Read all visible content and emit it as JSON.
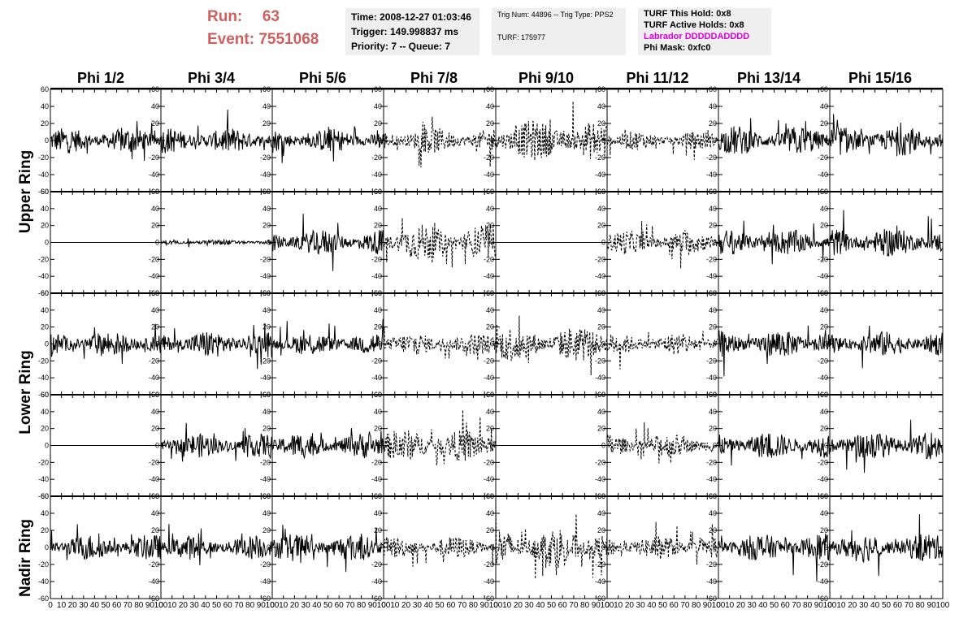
{
  "header": {
    "run_label": "Run:",
    "run_value": "63",
    "event_label": "Event:",
    "event_value": "7551068",
    "time": "Time: 2008-12-27 01:03:46",
    "trigger": "Trigger: 149.998837 ms",
    "priority": "Priority: 7 -- Queue: 7",
    "trig_num": "Trig Num: 44896 -- Trig Type: PPS2",
    "turf": "TURF: 175977",
    "turf_this_hold": "TURF This Hold: 0x8",
    "turf_active_holds": "TURF Active Holds: 0x8",
    "labrador": "Labrador DDDDDADDDD",
    "phi_mask": "Phi Mask: 0xfc0"
  },
  "colors": {
    "run_text": "#d0605e",
    "labrador_text": "#e100e1",
    "info_bg": "#efefef",
    "trace": "#000000"
  },
  "chart_data": {
    "type": "line",
    "description_of_panels": "grid of 5 rows x 8 columns of waveform traces",
    "columns": [
      "Phi 1/2",
      "Phi 3/4",
      "Phi 5/6",
      "Phi 7/8",
      "Phi 9/10",
      "Phi 11/12",
      "Phi 13/14",
      "Phi 15/16"
    ],
    "ring_labels": [
      "Upper Ring",
      "Lower Ring",
      "Nadir Ring"
    ],
    "ylim": [
      -60,
      60
    ],
    "yticks": [
      -60,
      -40,
      -20,
      0,
      20,
      40,
      60
    ],
    "xlim": [
      0,
      100
    ],
    "xticks": [
      0,
      10,
      20,
      30,
      40,
      50,
      60,
      70,
      80,
      90,
      100
    ],
    "panels": [
      [
        {
          "style": "solid",
          "amp": 14
        },
        {
          "style": "solid",
          "amp": 14
        },
        {
          "style": "solid",
          "amp": 13
        },
        {
          "style": "dashed",
          "amp": 14
        },
        {
          "style": "dashed",
          "amp": 22
        },
        {
          "style": "dashed",
          "amp": 10
        },
        {
          "style": "solid",
          "amp": 16
        },
        {
          "style": "solid",
          "amp": 16
        }
      ],
      [
        {
          "style": "flat",
          "amp": 0
        },
        {
          "style": "solid",
          "amp": 3
        },
        {
          "style": "solid",
          "amp": 14
        },
        {
          "style": "dashed",
          "amp": 20
        },
        {
          "style": "flat",
          "amp": 0
        },
        {
          "style": "dashed",
          "amp": 13
        },
        {
          "style": "solid",
          "amp": 14
        },
        {
          "style": "solid",
          "amp": 16
        }
      ],
      [
        {
          "style": "solid",
          "amp": 14
        },
        {
          "style": "solid",
          "amp": 15
        },
        {
          "style": "solid",
          "amp": 13
        },
        {
          "style": "dashed",
          "amp": 12
        },
        {
          "style": "dashed",
          "amp": 20
        },
        {
          "style": "dashed",
          "amp": 12
        },
        {
          "style": "solid",
          "amp": 15
        },
        {
          "style": "solid",
          "amp": 14
        }
      ],
      [
        {
          "style": "flat",
          "amp": 0
        },
        {
          "style": "solid",
          "amp": 13
        },
        {
          "style": "solid",
          "amp": 14
        },
        {
          "style": "dashed",
          "amp": 18
        },
        {
          "style": "flat",
          "amp": 0
        },
        {
          "style": "dashed",
          "amp": 13
        },
        {
          "style": "solid",
          "amp": 15
        },
        {
          "style": "solid",
          "amp": 16
        }
      ],
      [
        {
          "style": "solid",
          "amp": 14
        },
        {
          "style": "solid",
          "amp": 13
        },
        {
          "style": "solid",
          "amp": 15
        },
        {
          "style": "dashed",
          "amp": 12
        },
        {
          "style": "dashed",
          "amp": 22
        },
        {
          "style": "dashed",
          "amp": 13
        },
        {
          "style": "solid",
          "amp": 15
        },
        {
          "style": "solid",
          "amp": 16
        }
      ]
    ]
  }
}
